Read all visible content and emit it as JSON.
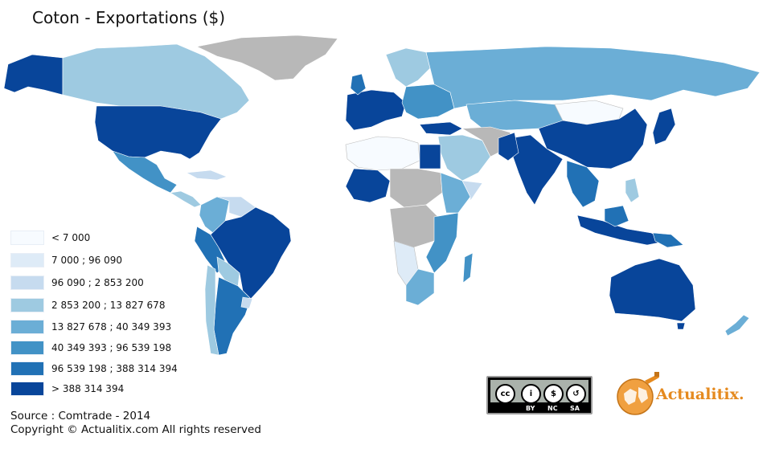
{
  "title": "Coton - Exportations ($)",
  "legend": [
    {
      "label": "< 7 000",
      "color": "#f7fbff"
    },
    {
      "label": "7 000 ; 96 090",
      "color": "#deebf7"
    },
    {
      "label": "96 090 ; 2 853 200",
      "color": "#c6dbef"
    },
    {
      "label": "2 853 200 ; 13 827 678",
      "color": "#9ecae1"
    },
    {
      "label": "13 827 678 ; 40 349 393",
      "color": "#6baed6"
    },
    {
      "label": "40 349 393 ; 96 539 198",
      "color": "#4292c6"
    },
    {
      "label": "96 539 198 ; 388 314 394",
      "color": "#2171b5"
    },
    {
      "label": "> 388 314 394",
      "color": "#08459a"
    }
  ],
  "no_data_color": "#b8b8b8",
  "source": "Source : Comtrade - 2014",
  "copyright": "Copyright © Actualitix.com All rights reserved",
  "license_badge": {
    "by": "BY",
    "nc": "NC",
    "sa": "SA"
  },
  "brand": {
    "name": "Actualitix",
    "dot": "."
  }
}
